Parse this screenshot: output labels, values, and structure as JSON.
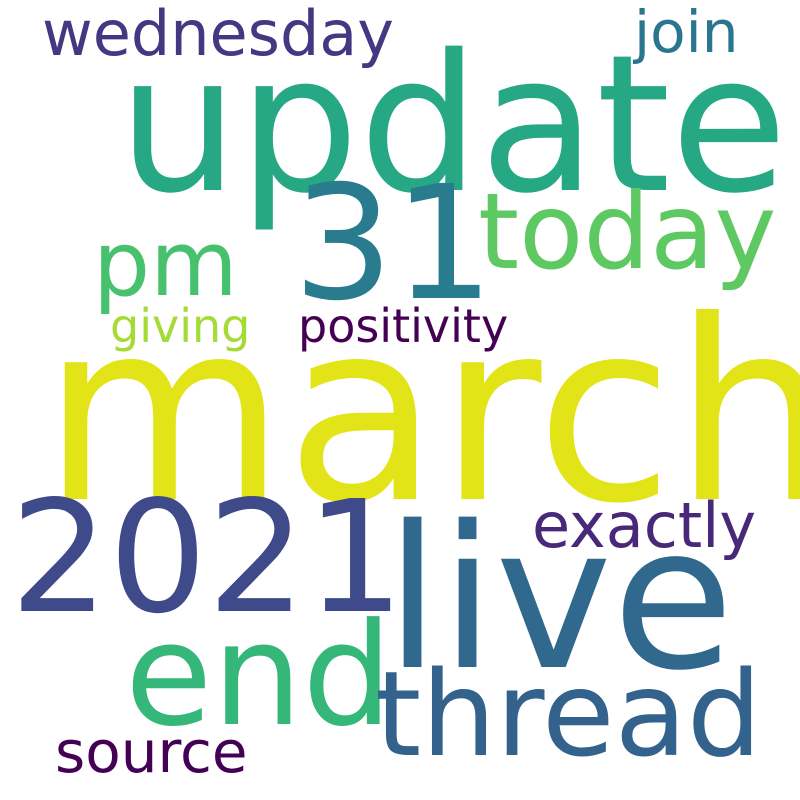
{
  "words": [
    {
      "text": "update",
      "color": "#26a884"
    },
    {
      "text": "wednesday",
      "color": "#453781"
    },
    {
      "text": "join",
      "color": "#2a768e"
    },
    {
      "text": "31",
      "color": "#287c8e"
    },
    {
      "text": "today",
      "color": "#5ec962"
    },
    {
      "text": "pm",
      "color": "#48c16e"
    },
    {
      "text": "giving",
      "color": "#a5db36"
    },
    {
      "text": "positivity",
      "color": "#440154"
    },
    {
      "text": "march",
      "color": "#e3e418"
    },
    {
      "text": "2021",
      "color": "#3e4a89"
    },
    {
      "text": "exactly",
      "color": "#482878"
    },
    {
      "text": "live",
      "color": "#31688e"
    },
    {
      "text": "end",
      "color": "#35b779"
    },
    {
      "text": "thread",
      "color": "#33638d"
    },
    {
      "text": "source",
      "color": "#440154"
    }
  ]
}
